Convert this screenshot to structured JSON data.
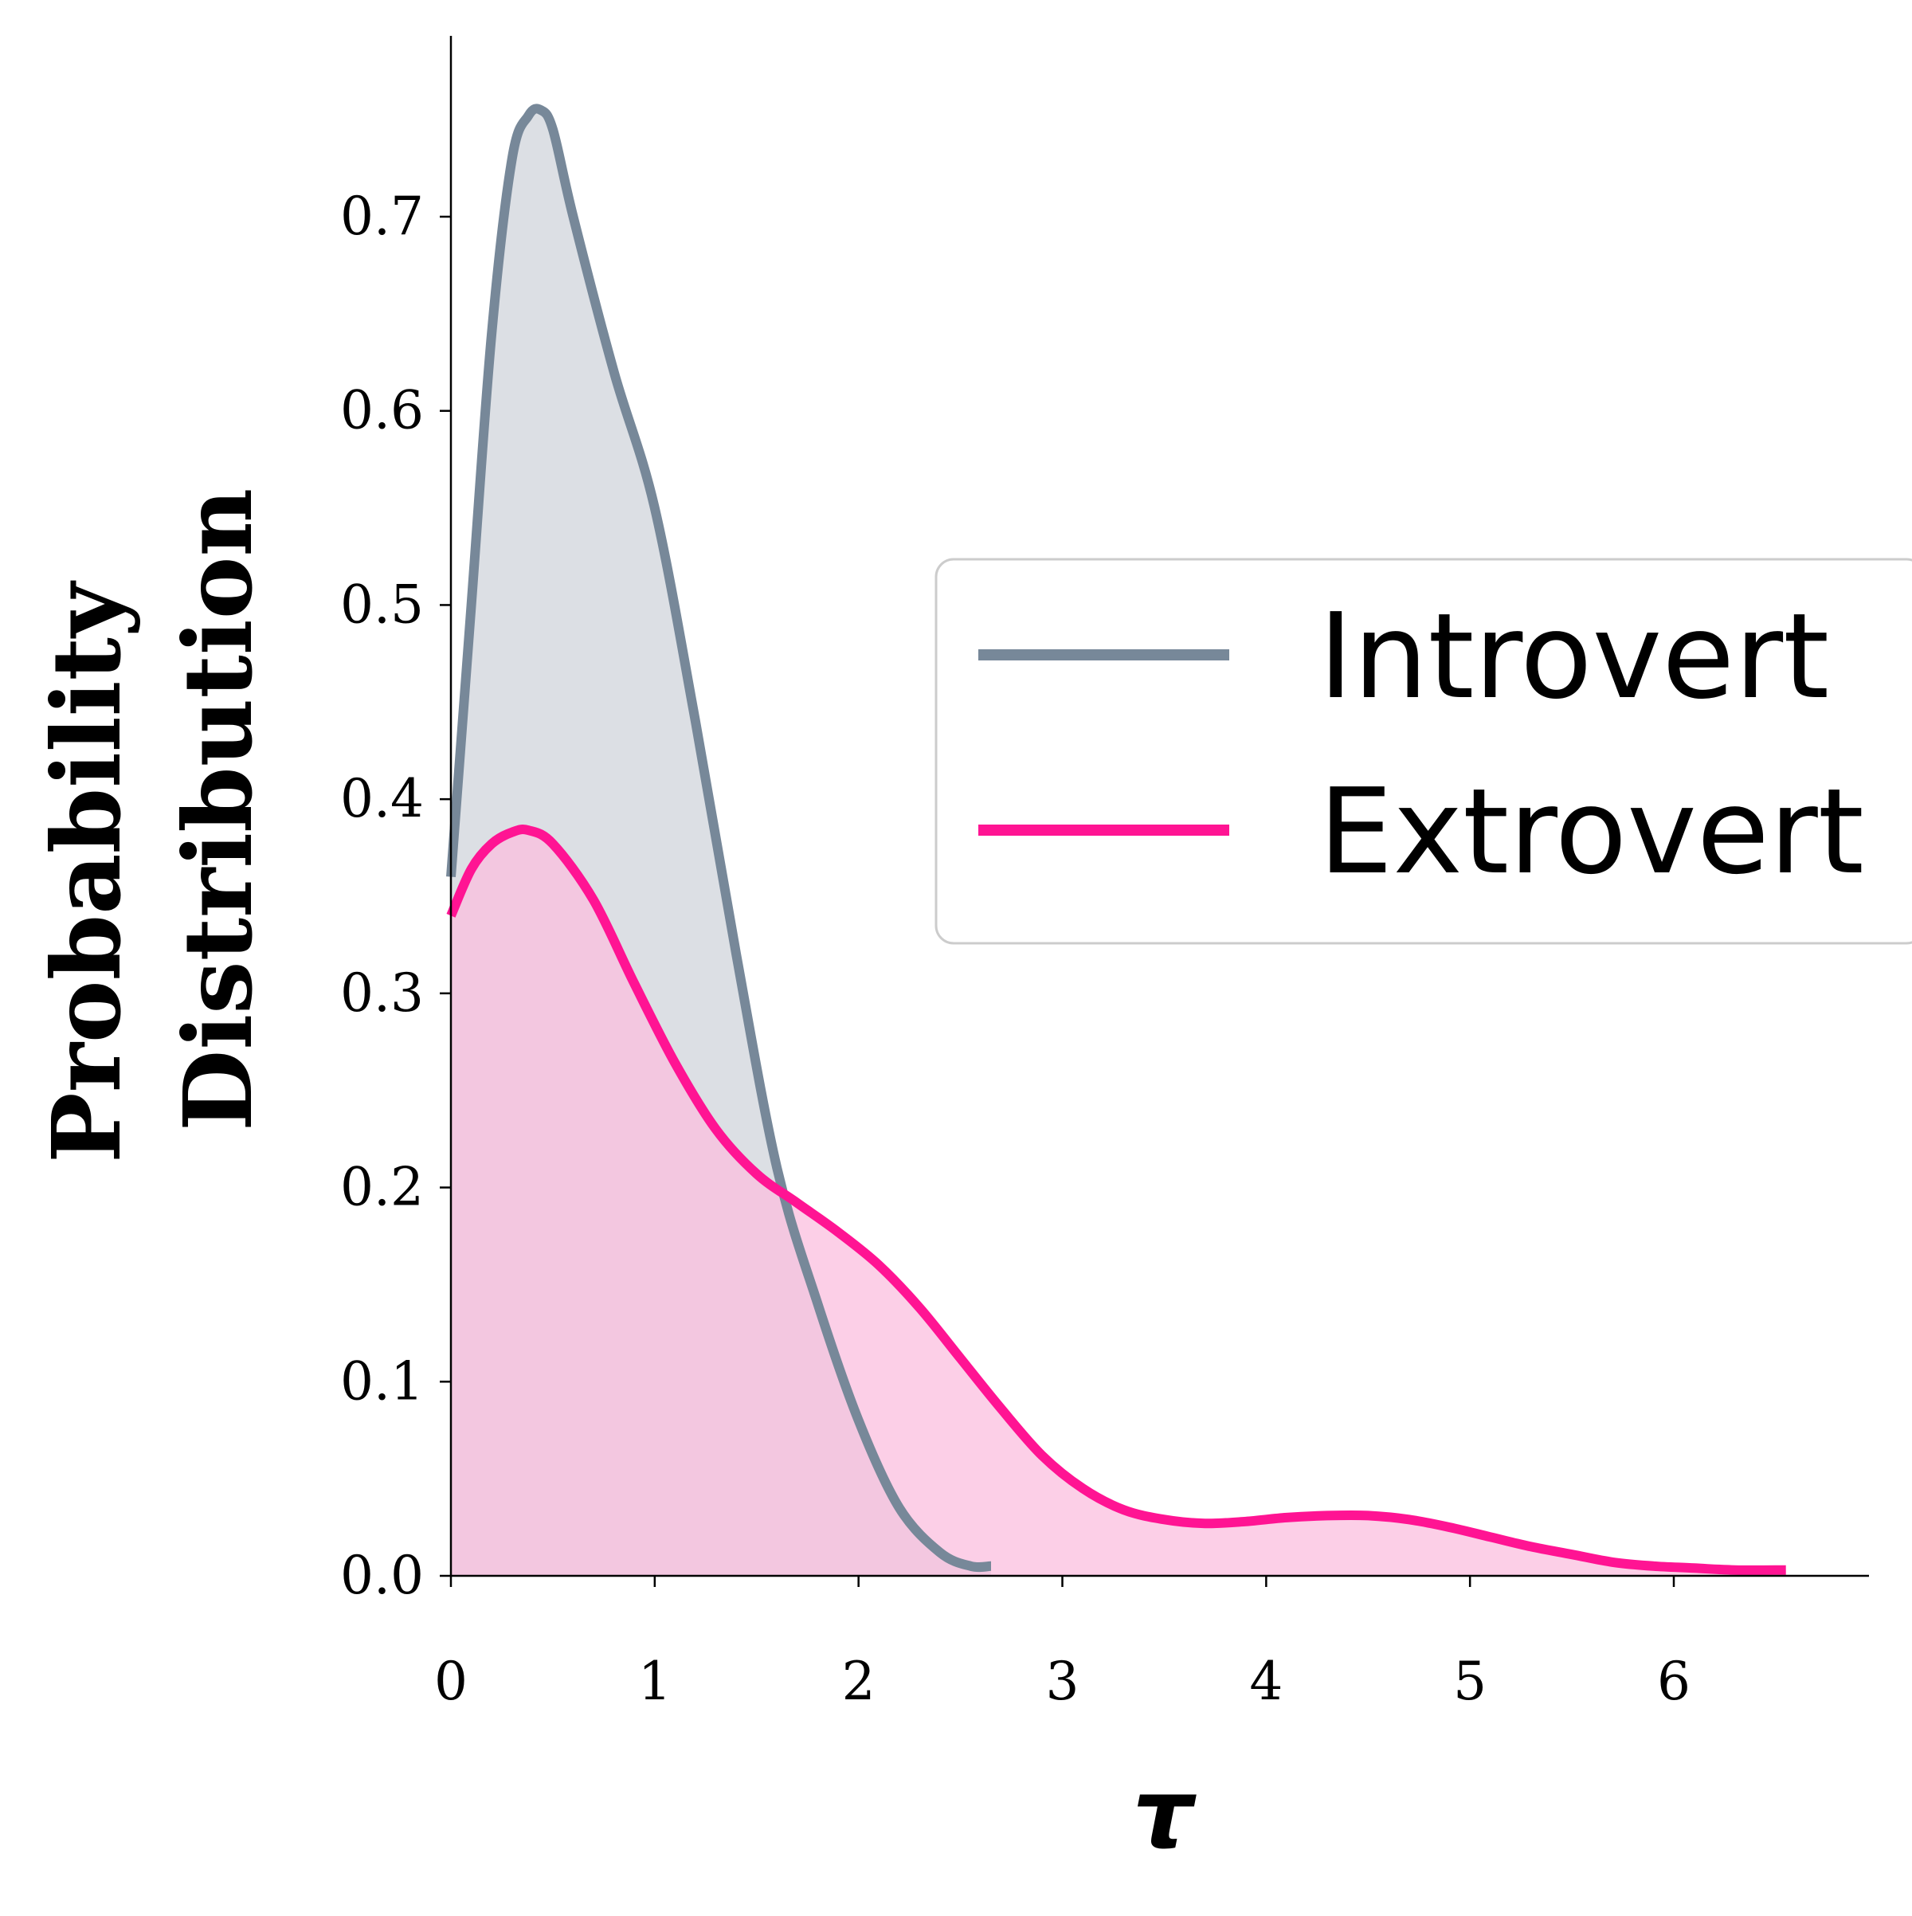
{
  "chart_data": {
    "type": "area",
    "xlabel": "τ",
    "ylabel_lines": [
      "Probability",
      "Distribution"
    ],
    "xlim": [
      0,
      6.95
    ],
    "ylim": [
      0,
      0.79
    ],
    "xticks": [
      0,
      1,
      2,
      3,
      4,
      5,
      6
    ],
    "yticks": [
      0.0,
      0.1,
      0.2,
      0.3,
      0.4,
      0.5,
      0.6,
      0.7
    ],
    "xtick_labels": [
      "0",
      "1",
      "2",
      "3",
      "4",
      "5",
      "6"
    ],
    "ytick_labels": [
      "0.0",
      "0.1",
      "0.2",
      "0.3",
      "0.4",
      "0.5",
      "0.6",
      "0.7"
    ],
    "grid": false,
    "legend_position": "center-right",
    "series": [
      {
        "name": "Introvert",
        "color": "#778899",
        "fill": "#dcdfe4",
        "x": [
          0.0,
          0.1,
          0.2,
          0.3,
          0.38,
          0.44,
          0.5,
          0.6,
          0.8,
          1.0,
          1.2,
          1.4,
          1.6,
          1.8,
          2.0,
          2.2,
          2.4,
          2.55,
          2.65
        ],
        "y": [
          0.36,
          0.5,
          0.64,
          0.73,
          0.752,
          0.755,
          0.745,
          0.7,
          0.62,
          0.55,
          0.44,
          0.32,
          0.21,
          0.14,
          0.08,
          0.035,
          0.012,
          0.005,
          0.005
        ]
      },
      {
        "name": "Extrovert",
        "color": "#ff1493",
        "fill": "#fbbfdf",
        "x": [
          0.0,
          0.1,
          0.2,
          0.3,
          0.38,
          0.5,
          0.7,
          0.9,
          1.1,
          1.3,
          1.5,
          1.7,
          1.9,
          2.1,
          2.3,
          2.5,
          2.7,
          2.9,
          3.1,
          3.3,
          3.5,
          3.7,
          3.9,
          4.1,
          4.3,
          4.5,
          4.7,
          4.9,
          5.1,
          5.3,
          5.5,
          5.7,
          5.9,
          6.1,
          6.3,
          6.55
        ],
        "y": [
          0.34,
          0.364,
          0.377,
          0.383,
          0.384,
          0.377,
          0.348,
          0.305,
          0.264,
          0.23,
          0.207,
          0.192,
          0.177,
          0.16,
          0.138,
          0.112,
          0.086,
          0.062,
          0.045,
          0.034,
          0.029,
          0.027,
          0.028,
          0.03,
          0.031,
          0.031,
          0.029,
          0.025,
          0.02,
          0.015,
          0.011,
          0.007,
          0.005,
          0.004,
          0.003,
          0.003
        ]
      }
    ]
  }
}
